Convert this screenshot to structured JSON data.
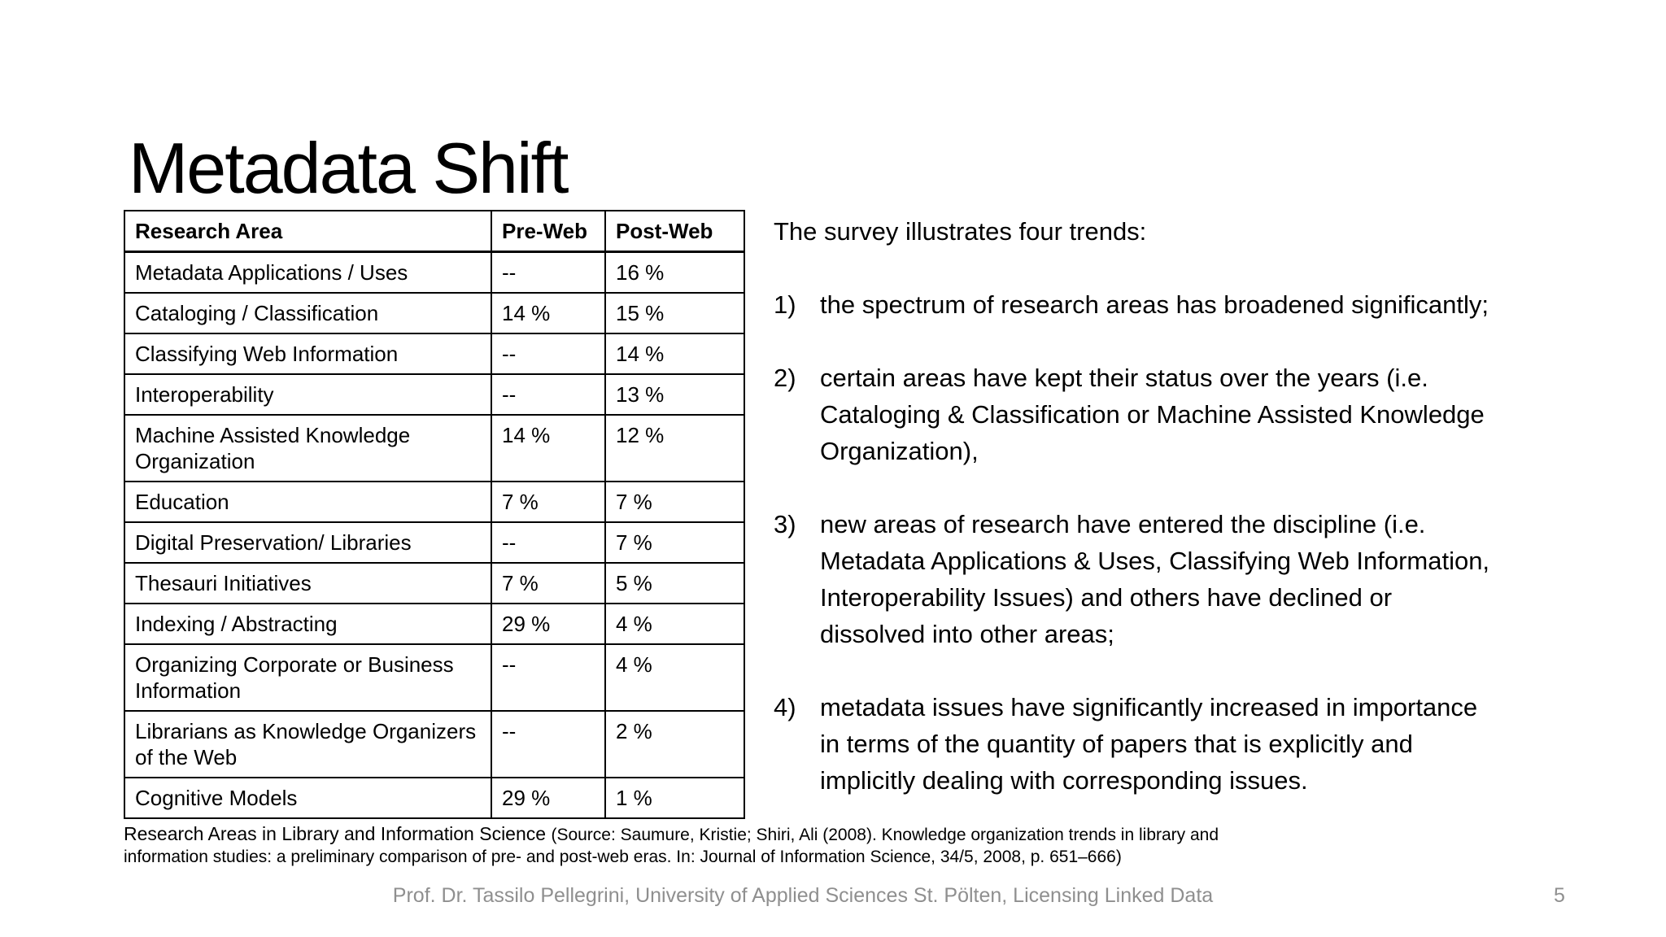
{
  "slide": {
    "title": "Metadata Shift",
    "page_number": "5",
    "footer_text": "Prof. Dr. Tassilo Pellegrini, University of Applied Sciences St. Pölten, Licensing Linked Data"
  },
  "table": {
    "columns": [
      "Research Area",
      "Pre-Web",
      "Post-Web"
    ],
    "rows": [
      [
        "Metadata Applications / Uses",
        "--",
        "16 %"
      ],
      [
        "Cataloging / Classification",
        "14 %",
        "15 %"
      ],
      [
        "Classifying Web Information",
        "--",
        "14 %"
      ],
      [
        "Interoperability",
        "--",
        "13 %"
      ],
      [
        "Machine Assisted Knowledge Organization",
        "14 %",
        "12 %"
      ],
      [
        "Education",
        "7 %",
        "7 %"
      ],
      [
        "Digital Preservation/ Libraries",
        "--",
        "7 %"
      ],
      [
        "Thesauri Initiatives",
        "7 %",
        "5 %"
      ],
      [
        "Indexing / Abstracting",
        "29 %",
        "4 %"
      ],
      [
        "Organizing Corporate or Business Information",
        "--",
        "4 %"
      ],
      [
        "Librarians as Knowledge Organizers of the Web",
        "--",
        "2 %"
      ],
      [
        "Cognitive Models",
        "29 %",
        "1 %"
      ]
    ],
    "caption_lead": "Research Areas in Library and Information Science ",
    "caption_source": "(Source: Saumure, Kristie; Shiri, Ali (2008). Knowledge organization trends in library and information studies: a preliminary comparison of pre- and post-web eras. In: Journal of Information Science, 34/5, 2008, p. 651–666)"
  },
  "trends": {
    "intro": "The survey illustrates four trends:",
    "items": [
      {
        "number": "1)",
        "text": "the spectrum of research areas has broadened significantly;"
      },
      {
        "number": "2)",
        "text": "certain areas have kept their status over the years (i.e.\nCataloging & Classification or Machine Assisted Knowledge\nOrganization),"
      },
      {
        "number": "3)",
        "text": "new areas of research have entered the discipline (i.e.\nMetadata Applications & Uses, Classifying Web Information,\nInteroperability Issues) and others have declined or\ndissolved into other areas;"
      },
      {
        "number": "4)",
        "text": "metadata issues have significantly increased in importance\nin terms of the quantity of papers that is explicitly and\nimplicitly dealing with corresponding issues."
      }
    ]
  },
  "colors": {
    "background": "#ffffff",
    "text": "#000000",
    "muted_gray": "#8f8f8f"
  }
}
